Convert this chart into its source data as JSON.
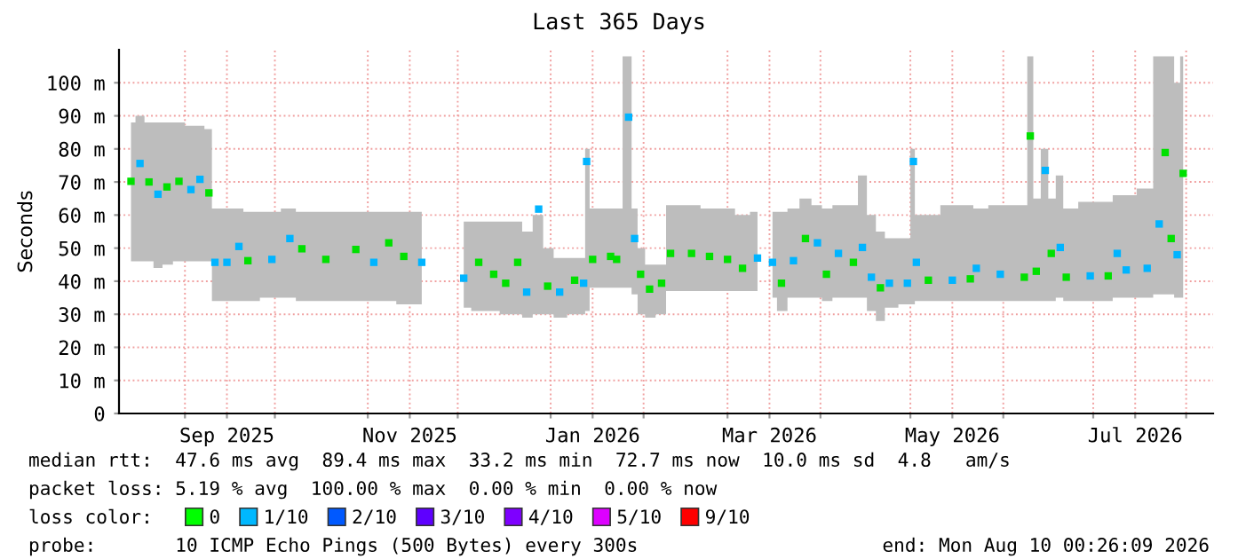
{
  "chart_data": {
    "type": "scatter",
    "title": "Last 365 Days",
    "ylabel": "Seconds",
    "x": [
      "2025-08-14",
      "2025-08-17",
      "2025-08-20",
      "2025-08-23",
      "2025-08-26",
      "2025-08-30",
      "2025-09-03",
      "2025-09-06",
      "2025-09-09",
      "2025-09-11",
      "2025-09-15",
      "2025-09-19",
      "2025-09-22",
      "2025-09-30",
      "2025-10-06",
      "2025-10-10",
      "2025-10-18",
      "2025-10-28",
      "2025-11-03",
      "2025-11-08",
      "2025-11-13",
      "2025-11-19",
      "2025-11-26",
      "2025-12-03",
      "2025-12-08",
      "2025-12-13",
      "2025-12-17",
      "2025-12-21",
      "2025-12-24",
      "2025-12-28",
      "2025-12-31",
      "2026-01-04",
      "2026-01-09",
      "2026-01-12",
      "2026-01-13",
      "2026-01-15",
      "2026-01-21",
      "2026-01-23",
      "2026-01-27",
      "2026-01-29",
      "2026-01-31",
      "2026-02-03",
      "2026-02-07",
      "2026-02-10",
      "2026-02-17",
      "2026-02-23",
      "2026-03-01",
      "2026-03-06",
      "2026-03-11",
      "2026-03-13",
      "2026-03-16",
      "2026-03-19",
      "2026-03-23",
      "2026-03-27",
      "2026-03-31",
      "2026-04-03",
      "2026-04-07",
      "2026-04-12",
      "2026-04-15",
      "2026-04-18",
      "2026-04-21",
      "2026-04-24",
      "2026-04-30",
      "2026-05-02",
      "2026-05-03",
      "2026-05-07",
      "2026-05-15",
      "2026-05-21",
      "2026-05-23",
      "2026-05-31",
      "2026-06-08",
      "2026-06-10",
      "2026-06-12",
      "2026-06-15",
      "2026-06-17",
      "2026-06-20",
      "2026-06-22",
      "2026-06-30",
      "2026-07-06",
      "2026-07-09",
      "2026-07-12",
      "2026-07-19",
      "2026-07-23",
      "2026-07-25",
      "2026-07-27",
      "2026-07-29",
      "2026-07-31"
    ],
    "series": [
      {
        "color": "#bdbdbd",
        "marker": "square",
        "values": [
          70.2,
          75.6,
          70.0,
          66.3,
          68.5,
          70.2,
          67.7,
          70.8,
          66.7,
          45.7,
          45.7,
          50.5,
          46.2,
          46.6,
          52.9,
          49.8,
          46.6,
          49.6,
          45.7,
          51.6,
          47.5,
          45.7,
          null,
          40.9,
          45.7,
          42.1,
          39.4,
          45.7,
          36.7,
          61.8,
          38.5,
          36.7,
          40.3,
          39.4,
          76.2,
          46.6,
          47.5,
          46.6,
          89.6,
          52.9,
          42.1,
          37.6,
          39.4,
          48.4,
          48.4,
          47.5,
          46.6,
          43.9,
          47.0,
          null,
          45.7,
          39.4,
          46.2,
          52.9,
          51.6,
          42.1,
          48.4,
          45.7,
          50.2,
          41.2,
          38.0,
          39.4,
          39.4,
          76.2,
          45.7,
          40.3,
          40.3,
          40.7,
          43.9,
          42.1,
          41.2,
          83.9,
          43.0,
          73.5,
          48.4,
          50.2,
          41.2,
          41.6,
          41.6,
          48.4,
          43.4,
          43.9,
          57.3,
          78.9,
          52.9,
          48.0,
          72.6
        ],
        "lower": [
          46,
          46,
          46,
          44,
          45,
          46,
          46,
          46,
          46,
          34,
          34,
          34,
          34,
          35,
          35,
          34,
          34,
          34,
          34,
          34,
          33,
          33,
          null,
          32,
          31,
          31,
          30,
          30,
          29,
          30,
          30,
          29,
          30,
          30,
          31,
          38,
          38,
          38,
          38,
          36,
          30,
          29,
          30,
          37,
          37,
          37,
          37,
          37,
          37,
          null,
          35,
          31,
          35,
          35,
          35,
          34,
          35,
          35,
          35,
          31,
          28,
          32,
          33,
          33,
          34,
          34,
          34,
          34,
          34,
          34,
          34,
          34,
          34,
          34,
          34,
          35,
          34,
          34,
          34,
          35,
          35,
          35,
          36,
          36,
          36,
          35,
          35
        ],
        "upper": [
          88,
          90,
          88,
          88,
          88,
          88,
          87,
          87,
          86,
          62,
          62,
          62,
          61,
          61,
          62,
          61,
          61,
          61,
          61,
          61,
          61,
          61,
          null,
          58,
          58,
          58,
          58,
          58,
          55,
          60,
          50,
          47,
          47,
          47,
          80,
          62,
          62,
          62,
          108,
          62,
          50,
          45,
          45,
          63,
          63,
          62,
          62,
          60,
          61,
          null,
          61,
          61,
          62,
          65,
          63,
          62,
          63,
          63,
          72,
          60,
          55,
          53,
          53,
          80,
          60,
          60,
          63,
          63,
          62,
          63,
          63,
          108,
          65,
          80,
          65,
          72,
          62,
          64,
          64,
          66,
          66,
          68,
          108,
          108,
          108,
          100,
          108
        ],
        "colors": [
          "#00e000",
          "#00b4ff",
          "#00e000",
          "#00b4ff",
          "#00e000",
          "#00e000",
          "#00b4ff",
          "#00b4ff",
          "#00e000",
          "#00b4ff",
          "#00b4ff",
          "#00b4ff",
          "#00e000",
          "#00b4ff",
          "#00b4ff",
          "#00e000",
          "#00e000",
          "#00e000",
          "#00b4ff",
          "#00e000",
          "#00e000",
          "#00b4ff",
          "#00e000",
          "#00b4ff",
          "#00e000",
          "#00e000",
          "#00e000",
          "#00e000",
          "#00b4ff",
          "#00b4ff",
          "#00e000",
          "#00b4ff",
          "#00e000",
          "#00b4ff",
          "#00b4ff",
          "#00e000",
          "#00e000",
          "#00e000",
          "#00b4ff",
          "#00b4ff",
          "#00e000",
          "#00e000",
          "#00e000",
          "#00e000",
          "#00e000",
          "#00e000",
          "#00e000",
          "#00e000",
          "#00b4ff",
          "#00e000",
          "#00b4ff",
          "#00e000",
          "#00b4ff",
          "#00e000",
          "#00b4ff",
          "#00e000",
          "#00b4ff",
          "#00e000",
          "#00b4ff",
          "#00b4ff",
          "#00e000",
          "#00b4ff",
          "#00b4ff",
          "#00b4ff",
          "#00b4ff",
          "#00e000",
          "#00b4ff",
          "#00e000",
          "#00b4ff",
          "#00b4ff",
          "#00e000",
          "#00e000",
          "#00e000",
          "#00b4ff",
          "#00e000",
          "#00b4ff",
          "#00e000",
          "#00b4ff",
          "#00e000",
          "#00b4ff",
          "#00b4ff",
          "#00b4ff",
          "#00b4ff",
          "#00e000",
          "#00e000",
          "#00b4ff",
          "#00e000"
        ]
      },
      {
        "name": "0",
        "color": "#00ff00",
        "values": [
          null,
          null,
          null,
          null,
          null,
          null,
          null,
          null,
          null,
          null,
          null,
          null,
          null,
          null,
          null,
          null,
          null,
          null,
          null,
          null,
          null,
          null,
          null,
          null,
          null,
          null,
          null,
          null,
          null,
          null,
          null,
          null,
          null,
          null,
          null,
          null,
          null,
          null,
          null,
          null,
          null,
          null,
          null,
          null,
          null,
          null,
          null,
          null,
          null,
          null,
          null,
          null,
          null,
          null,
          null,
          null,
          null,
          null,
          null,
          null,
          null,
          null,
          null,
          null,
          null,
          null,
          null,
          null,
          null,
          null,
          null,
          null,
          null,
          null,
          null,
          null,
          null,
          null,
          null,
          null,
          null,
          null,
          null,
          null,
          null,
          null,
          null
        ]
      },
      {
        "name": "1/10",
        "color": "#00b8ff",
        "values": [
          null,
          null,
          null,
          null,
          null,
          null,
          null,
          null,
          null,
          null,
          null,
          null,
          null,
          null,
          null,
          null,
          null,
          null,
          null,
          null,
          null,
          null,
          null,
          null,
          null,
          null,
          null,
          null,
          null,
          null,
          null,
          null,
          null,
          null,
          null,
          null,
          null,
          null,
          null,
          null,
          null,
          null,
          null,
          null,
          null,
          null,
          null,
          null,
          null,
          null,
          null,
          null,
          null,
          null,
          null,
          null,
          null,
          null,
          null,
          null,
          null,
          null,
          null,
          null,
          null,
          null,
          null,
          null,
          null,
          null,
          null,
          null,
          null,
          null,
          null,
          null,
          null,
          null,
          null,
          null,
          null,
          null,
          null,
          null,
          null,
          null,
          null
        ]
      },
      {
        "name": "2/10",
        "color": "#0059ff",
        "values": [
          null,
          null,
          null,
          null,
          null,
          null,
          null,
          null,
          null,
          null,
          null,
          null,
          null,
          null,
          null,
          null,
          null,
          null,
          null,
          null,
          null,
          null,
          null,
          null,
          null,
          null,
          null,
          null,
          null,
          null,
          null,
          null,
          null,
          null,
          null,
          null,
          null,
          null,
          null,
          null,
          null,
          null,
          null,
          null,
          null,
          null,
          null,
          null,
          null,
          null,
          null,
          null,
          null,
          null,
          null,
          null,
          null,
          null,
          null,
          null,
          null,
          null,
          null,
          null,
          null,
          null,
          null,
          null,
          null,
          null,
          null,
          null,
          null,
          null,
          null,
          null,
          null,
          null,
          null,
          null,
          null,
          null,
          null,
          null,
          null,
          null,
          null
        ]
      },
      {
        "name": "3/10",
        "color": "#5e00ff",
        "values": [
          null,
          null,
          null,
          null,
          null,
          null,
          null,
          null,
          null,
          null,
          null,
          null,
          null,
          null,
          null,
          null,
          null,
          null,
          null,
          null,
          null,
          null,
          null,
          null,
          null,
          null,
          null,
          null,
          null,
          null,
          null,
          null,
          null,
          null,
          null,
          null,
          null,
          null,
          null,
          null,
          null,
          null,
          null,
          null,
          null,
          null,
          null,
          null,
          null,
          null,
          null,
          null,
          null,
          null,
          null,
          null,
          null,
          null,
          null,
          null,
          null,
          null,
          null,
          null,
          null,
          null,
          null,
          null,
          null,
          null,
          null,
          null,
          null,
          null,
          null,
          null,
          null,
          null,
          null,
          null,
          null,
          null,
          null,
          null,
          null,
          null,
          null
        ]
      },
      {
        "name": "4/10",
        "color": "#7e00ff",
        "values": [
          null,
          null,
          null,
          null,
          null,
          null,
          null,
          null,
          null,
          null,
          null,
          null,
          null,
          null,
          null,
          null,
          null,
          null,
          null,
          null,
          null,
          null,
          null,
          null,
          null,
          null,
          null,
          null,
          null,
          null,
          null,
          null,
          null,
          null,
          null,
          null,
          null,
          null,
          null,
          null,
          null,
          null,
          null,
          null,
          null,
          null,
          null,
          null,
          null,
          null,
          null,
          null,
          null,
          null,
          null,
          null,
          null,
          null,
          null,
          null,
          null,
          null,
          null,
          null,
          null,
          null,
          null,
          null,
          null,
          null,
          null,
          null,
          null,
          null,
          null,
          null,
          null,
          null,
          null,
          null,
          null,
          null,
          null,
          null,
          null,
          null,
          null
        ]
      },
      {
        "name": "5/10",
        "color": "#dd00ff",
        "values": [
          null,
          null,
          null,
          null,
          null,
          null,
          null,
          null,
          null,
          null,
          null,
          null,
          null,
          null,
          null,
          null,
          null,
          null,
          null,
          null,
          null,
          null,
          null,
          null,
          null,
          null,
          null,
          null,
          null,
          null,
          null,
          null,
          null,
          null,
          null,
          null,
          null,
          null,
          null,
          null,
          null,
          null,
          null,
          null,
          null,
          null,
          null,
          null,
          null,
          null,
          null,
          null,
          null,
          null,
          null,
          null,
          null,
          null,
          null,
          null,
          null,
          null,
          null,
          null,
          null,
          null,
          null,
          null,
          null,
          null,
          null,
          null,
          null,
          null,
          null,
          null,
          null,
          null,
          null,
          null,
          null,
          null,
          null,
          null,
          null,
          null,
          null
        ]
      },
      {
        "name": "9/10",
        "color": "#ff0000",
        "values": [
          null,
          null,
          null,
          null,
          null,
          null,
          null,
          null,
          null,
          null,
          null,
          null,
          null,
          null,
          null,
          null,
          null,
          null,
          null,
          null,
          null,
          null,
          null,
          null,
          null,
          null,
          null,
          null,
          null,
          null,
          null,
          null,
          null,
          null,
          null,
          null,
          null,
          null,
          null,
          null,
          null,
          null,
          null,
          null,
          null,
          null,
          null,
          null,
          null,
          null,
          null,
          null,
          null,
          null,
          null,
          null,
          null,
          null,
          null,
          null,
          null,
          null,
          null,
          null,
          null,
          null,
          null,
          null,
          null,
          null,
          null,
          null,
          null,
          null,
          null,
          null,
          null,
          null,
          null,
          null,
          null,
          null,
          null,
          null,
          null,
          null,
          null
        ]
      }
    ],
    "legend": "bottom",
    "legend_title": "loss color:",
    "xlim": [
      "2025-08-10",
      "2026-08-10"
    ],
    "xticks": [
      {
        "value": "2025-09-01",
        "label": null
      },
      {
        "value": "2025-09-15",
        "label": "Sep 2025"
      },
      {
        "value": "2025-10-01",
        "label": null
      },
      {
        "value": "2025-11-01",
        "label": null
      },
      {
        "value": "2025-11-15",
        "label": "Nov 2025"
      },
      {
        "value": "2025-12-01",
        "label": null
      },
      {
        "value": "2026-01-01",
        "label": null
      },
      {
        "value": "2026-01-15",
        "label": "Jan 2026"
      },
      {
        "value": "2026-02-01",
        "label": null
      },
      {
        "value": "2026-03-01",
        "label": null
      },
      {
        "value": "2026-03-15",
        "label": "Mar 2026"
      },
      {
        "value": "2026-04-01",
        "label": null
      },
      {
        "value": "2026-05-01",
        "label": null
      },
      {
        "value": "2026-05-15",
        "label": "May 2026"
      },
      {
        "value": "2026-06-01",
        "label": null
      },
      {
        "value": "2026-07-01",
        "label": null
      },
      {
        "value": "2026-07-15",
        "label": "Jul 2026"
      },
      {
        "value": "2026-08-01",
        "label": null
      }
    ],
    "ylim": [
      0,
      110
    ],
    "yticks": [
      0,
      {
        "value": 10,
        "label": "10 m"
      },
      {
        "value": 20,
        "label": "20 m"
      },
      {
        "value": 30,
        "label": "30 m"
      },
      {
        "value": 40,
        "label": "40 m"
      },
      {
        "value": 50,
        "label": "50 m"
      },
      {
        "value": 60,
        "label": "60 m"
      },
      {
        "value": 70,
        "label": "70 m"
      },
      {
        "value": 80,
        "label": "80 m"
      },
      {
        "value": 90,
        "label": "90 m"
      },
      {
        "value": 100,
        "label": "100 m"
      }
    ],
    "grid": true,
    "annotations": [
      "median rtt:  47.6 ms avg  89.4 ms max  33.2 ms min  72.7 ms now  10.0 ms sd  4.8   am/s",
      "packet loss: 5.19 % avg  100.00 % max  0.00 % min  0.00 % now",
      "probe:       10 ICMP Echo Pings (500 Bytes) every 300s",
      "end: Mon Aug 10 00:26:09 2026"
    ]
  }
}
